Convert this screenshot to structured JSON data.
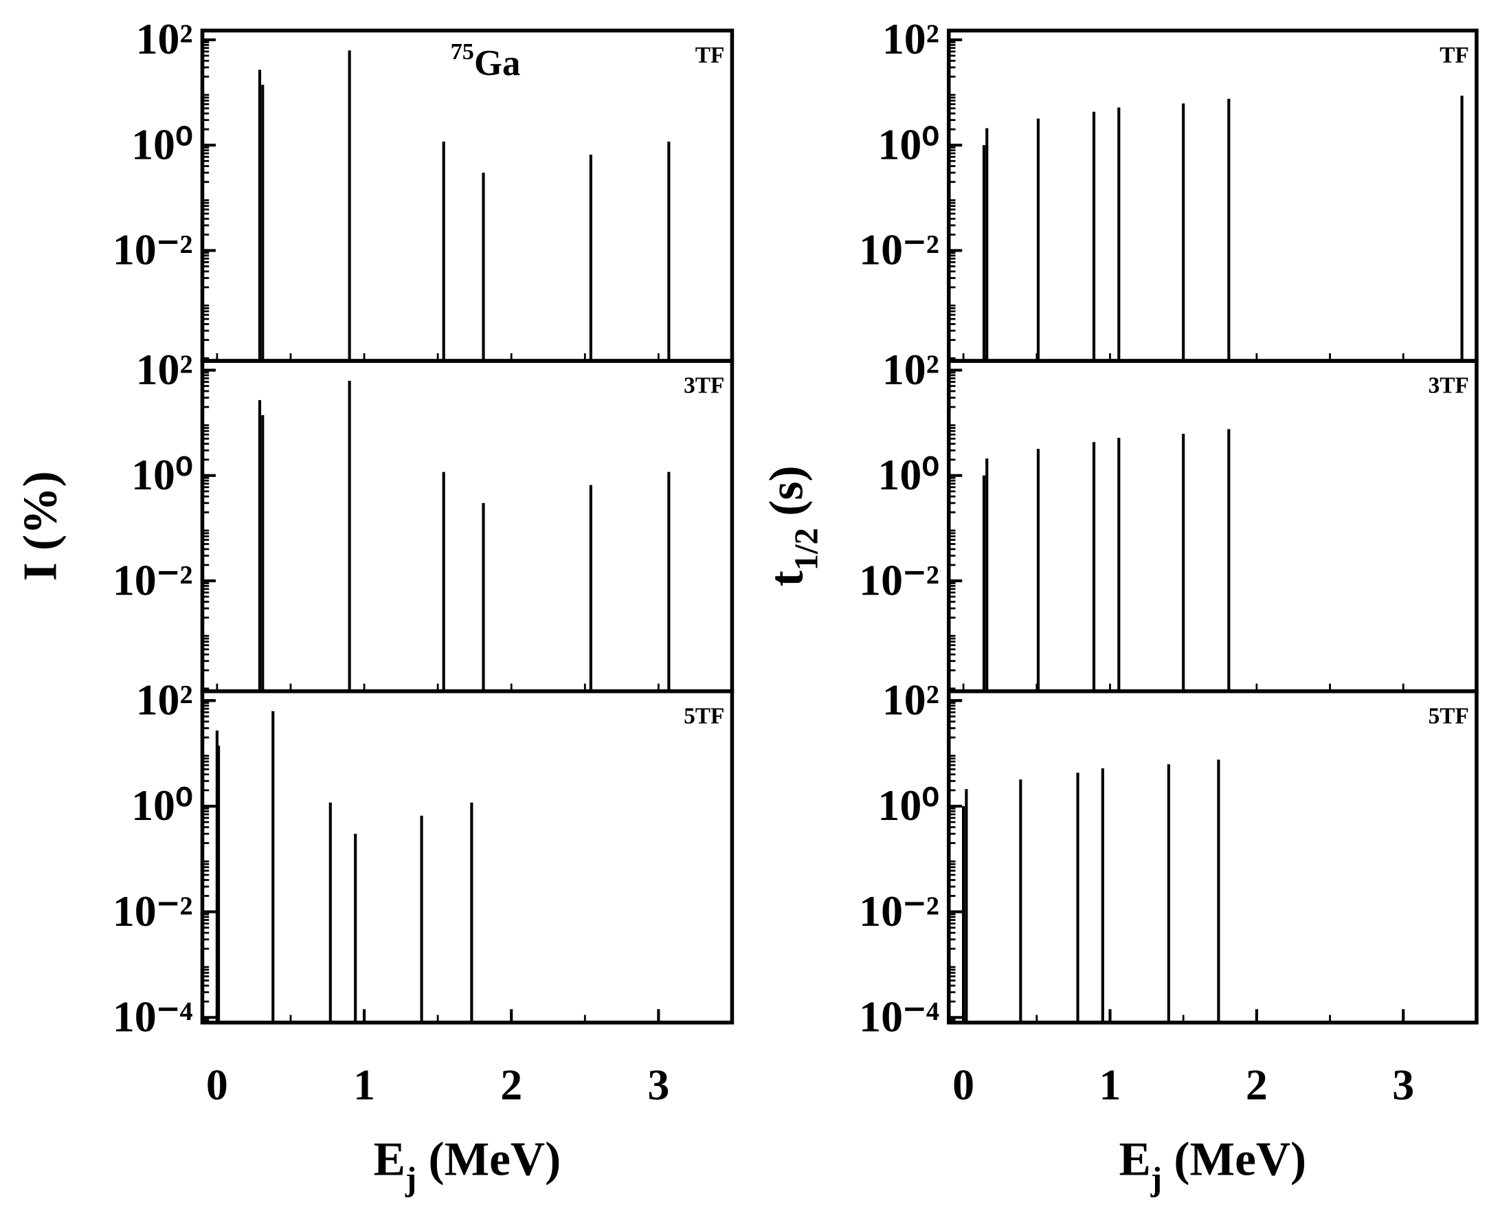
{
  "chart_data": [
    {
      "type": "stem",
      "panel_label": "TF",
      "annotation": {
        "sup": "75",
        "main": "Ga"
      },
      "color": "#000000",
      "x": [
        0.29,
        0.31,
        0.9,
        1.54,
        1.81,
        2.54,
        3.07
      ],
      "values": [
        27,
        14,
        63,
        1.17,
        0.3,
        0.66,
        1.17
      ],
      "xlim": [
        -0.1,
        3.5
      ],
      "ylim": [
        8e-05,
        150
      ],
      "log_y": true,
      "yticks": [
        {
          "value": 100,
          "label": "10²"
        },
        {
          "value": 1,
          "label": "10⁰"
        },
        {
          "value": 0.01,
          "label": "10⁻²"
        }
      ]
    },
    {
      "type": "stem",
      "panel_label": "3TF",
      "color": "#000000",
      "ylabel": {
        "main": "I (%)"
      },
      "x": [
        0.29,
        0.31,
        0.9,
        1.54,
        1.81,
        2.54,
        3.07
      ],
      "values": [
        27,
        14,
        63,
        1.17,
        0.3,
        0.66,
        1.17
      ],
      "xlim": [
        -0.1,
        3.5
      ],
      "ylim": [
        8e-05,
        150
      ],
      "log_y": true,
      "yticks": [
        {
          "value": 100,
          "label": "10²"
        },
        {
          "value": 1,
          "label": "10⁰"
        },
        {
          "value": 0.01,
          "label": "10⁻²"
        }
      ]
    },
    {
      "type": "stem",
      "panel_label": "5TF",
      "color": "#000000",
      "xlabel": {
        "main": "E",
        "sub": "j",
        "rest": " (MeV)"
      },
      "x": [
        0.0,
        0.01,
        0.38,
        0.77,
        0.94,
        1.39,
        1.73
      ],
      "values": [
        27,
        14,
        63,
        1.17,
        0.3,
        0.66,
        1.17
      ],
      "xlim": [
        -0.1,
        3.5
      ],
      "ylim": [
        8e-05,
        150
      ],
      "log_y": true,
      "xticks": [
        0,
        1,
        2,
        3
      ],
      "yticks": [
        {
          "value": 100,
          "label": "10²"
        },
        {
          "value": 1,
          "label": "10⁰"
        },
        {
          "value": 0.01,
          "label": "10⁻²"
        },
        {
          "value": 0.0001,
          "label": "10⁻⁴"
        }
      ]
    },
    {
      "type": "stem",
      "panel_label": "TF",
      "color": "#000000",
      "x": [
        0.14,
        0.16,
        0.51,
        0.89,
        1.06,
        1.5,
        1.81,
        3.4
      ],
      "values": [
        1.0,
        2.1,
        3.2,
        4.3,
        5.2,
        6.2,
        7.6,
        8.7
      ],
      "xlim": [
        -0.1,
        3.5
      ],
      "ylim": [
        8e-05,
        150
      ],
      "log_y": true,
      "yticks": [
        {
          "value": 100,
          "label": "10²"
        },
        {
          "value": 1,
          "label": "10⁰"
        },
        {
          "value": 0.01,
          "label": "10⁻²"
        }
      ]
    },
    {
      "type": "stem",
      "panel_label": "3TF",
      "color": "#000000",
      "ylabel": {
        "main": "t",
        "sub": "1/2",
        "rest": " (s)"
      },
      "x": [
        0.14,
        0.16,
        0.51,
        0.89,
        1.06,
        1.5,
        1.81
      ],
      "values": [
        1.0,
        2.1,
        3.2,
        4.3,
        5.2,
        6.2,
        7.6
      ],
      "xlim": [
        -0.1,
        3.5
      ],
      "ylim": [
        8e-05,
        150
      ],
      "log_y": true,
      "yticks": [
        {
          "value": 100,
          "label": "10²"
        },
        {
          "value": 1,
          "label": "10⁰"
        },
        {
          "value": 0.01,
          "label": "10⁻²"
        }
      ]
    },
    {
      "type": "stem",
      "panel_label": "5TF",
      "color": "#000000",
      "xlabel": {
        "main": "E",
        "sub": "j",
        "rest": " (MeV)"
      },
      "x": [
        0.0,
        0.02,
        0.39,
        0.78,
        0.95,
        1.4,
        1.74
      ],
      "values": [
        1.0,
        2.1,
        3.2,
        4.3,
        5.2,
        6.2,
        7.6
      ],
      "xlim": [
        -0.1,
        3.5
      ],
      "ylim": [
        8e-05,
        150
      ],
      "log_y": true,
      "xticks": [
        0,
        1,
        2,
        3
      ],
      "yticks": [
        {
          "value": 100,
          "label": "10²"
        },
        {
          "value": 1,
          "label": "10⁰"
        },
        {
          "value": 0.01,
          "label": "10⁻²"
        },
        {
          "value": 0.0001,
          "label": "10⁻⁴"
        }
      ]
    }
  ]
}
